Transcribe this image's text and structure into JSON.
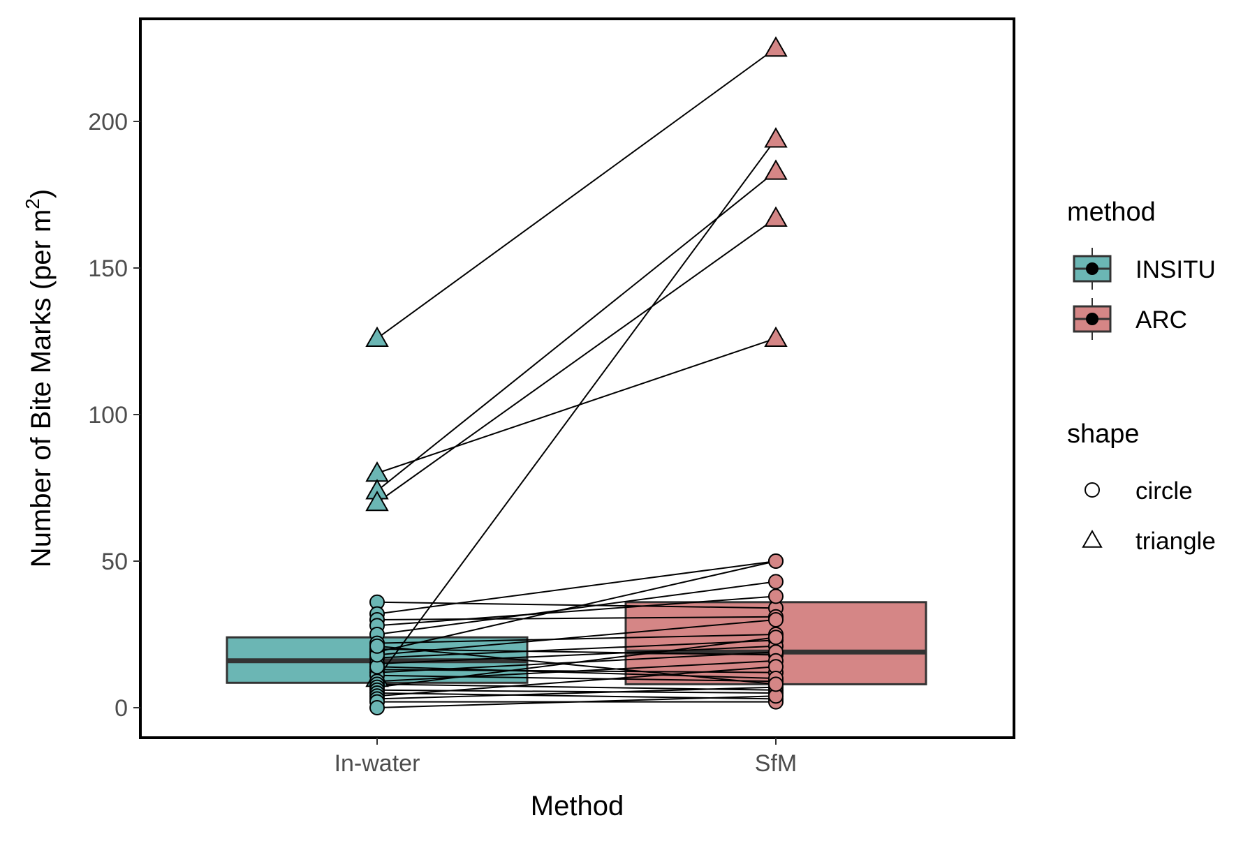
{
  "chart_data": {
    "type": "boxplot_paired",
    "title": "",
    "xlabel": "Method",
    "ylabel_main": "Number of Bite Marks (per m",
    "ylabel_sup": "2",
    "ylabel_tail": ")",
    "categories": [
      "In-water",
      "SfM"
    ],
    "ylim": [
      -10,
      235
    ],
    "yticks": [
      0,
      50,
      100,
      150,
      200
    ],
    "grid": false,
    "legend_position": "right",
    "boxes": [
      {
        "category": "In-water",
        "method": "INSITU",
        "q1": 8.5,
        "median": 16.0,
        "q3": 24.0
      },
      {
        "category": "SfM",
        "method": "ARC",
        "q1": 8.0,
        "median": 19.0,
        "q3": 36.0
      }
    ],
    "pairs": [
      {
        "in_water": 126,
        "sfm": 225,
        "shape": "triangle"
      },
      {
        "in_water": 80,
        "sfm": 126,
        "shape": "triangle"
      },
      {
        "in_water": 74,
        "sfm": 183,
        "shape": "triangle"
      },
      {
        "in_water": 70,
        "sfm": 167,
        "shape": "triangle"
      },
      {
        "in_water": 10,
        "sfm": 194,
        "shape": "triangle"
      },
      {
        "in_water": 36,
        "sfm": 34,
        "shape": "circle"
      },
      {
        "in_water": 32,
        "sfm": 50,
        "shape": "circle"
      },
      {
        "in_water": 30,
        "sfm": 31,
        "shape": "circle"
      },
      {
        "in_water": 28,
        "sfm": 38,
        "shape": "circle"
      },
      {
        "in_water": 25,
        "sfm": 43,
        "shape": "circle"
      },
      {
        "in_water": 22,
        "sfm": 25,
        "shape": "circle"
      },
      {
        "in_water": 20,
        "sfm": 18,
        "shape": "circle"
      },
      {
        "in_water": 19,
        "sfm": 50,
        "shape": "circle"
      },
      {
        "in_water": 17,
        "sfm": 23,
        "shape": "circle"
      },
      {
        "in_water": 15,
        "sfm": 21,
        "shape": "circle"
      },
      {
        "in_water": 13,
        "sfm": 12,
        "shape": "circle"
      },
      {
        "in_water": 12,
        "sfm": 19,
        "shape": "circle"
      },
      {
        "in_water": 11,
        "sfm": 9,
        "shape": "circle"
      },
      {
        "in_water": 9,
        "sfm": 16,
        "shape": "circle"
      },
      {
        "in_water": 8,
        "sfm": 6,
        "shape": "circle"
      },
      {
        "in_water": 7,
        "sfm": 24,
        "shape": "circle"
      },
      {
        "in_water": 6,
        "sfm": 5,
        "shape": "circle"
      },
      {
        "in_water": 5,
        "sfm": 3,
        "shape": "circle"
      },
      {
        "in_water": 4,
        "sfm": 14,
        "shape": "circle"
      },
      {
        "in_water": 3,
        "sfm": 7,
        "shape": "circle"
      },
      {
        "in_water": 2,
        "sfm": 2,
        "shape": "circle"
      },
      {
        "in_water": 0,
        "sfm": 4,
        "shape": "circle"
      },
      {
        "in_water": 14,
        "sfm": 10,
        "shape": "circle"
      },
      {
        "in_water": 18,
        "sfm": 30,
        "shape": "circle"
      },
      {
        "in_water": 21,
        "sfm": 8,
        "shape": "circle"
      }
    ],
    "legend": {
      "method_title": "method",
      "method_items": [
        {
          "label": "INSITU",
          "color": "#6BB6B4"
        },
        {
          "label": "ARC",
          "color": "#D58686"
        }
      ],
      "shape_title": "shape",
      "shape_items": [
        {
          "label": "circle",
          "shape": "circle"
        },
        {
          "label": "triangle",
          "shape": "triangle"
        }
      ]
    },
    "colors": {
      "INSITU": "#6BB6B4",
      "ARC": "#D58686",
      "outline": "#333333",
      "line": "#000000"
    }
  }
}
